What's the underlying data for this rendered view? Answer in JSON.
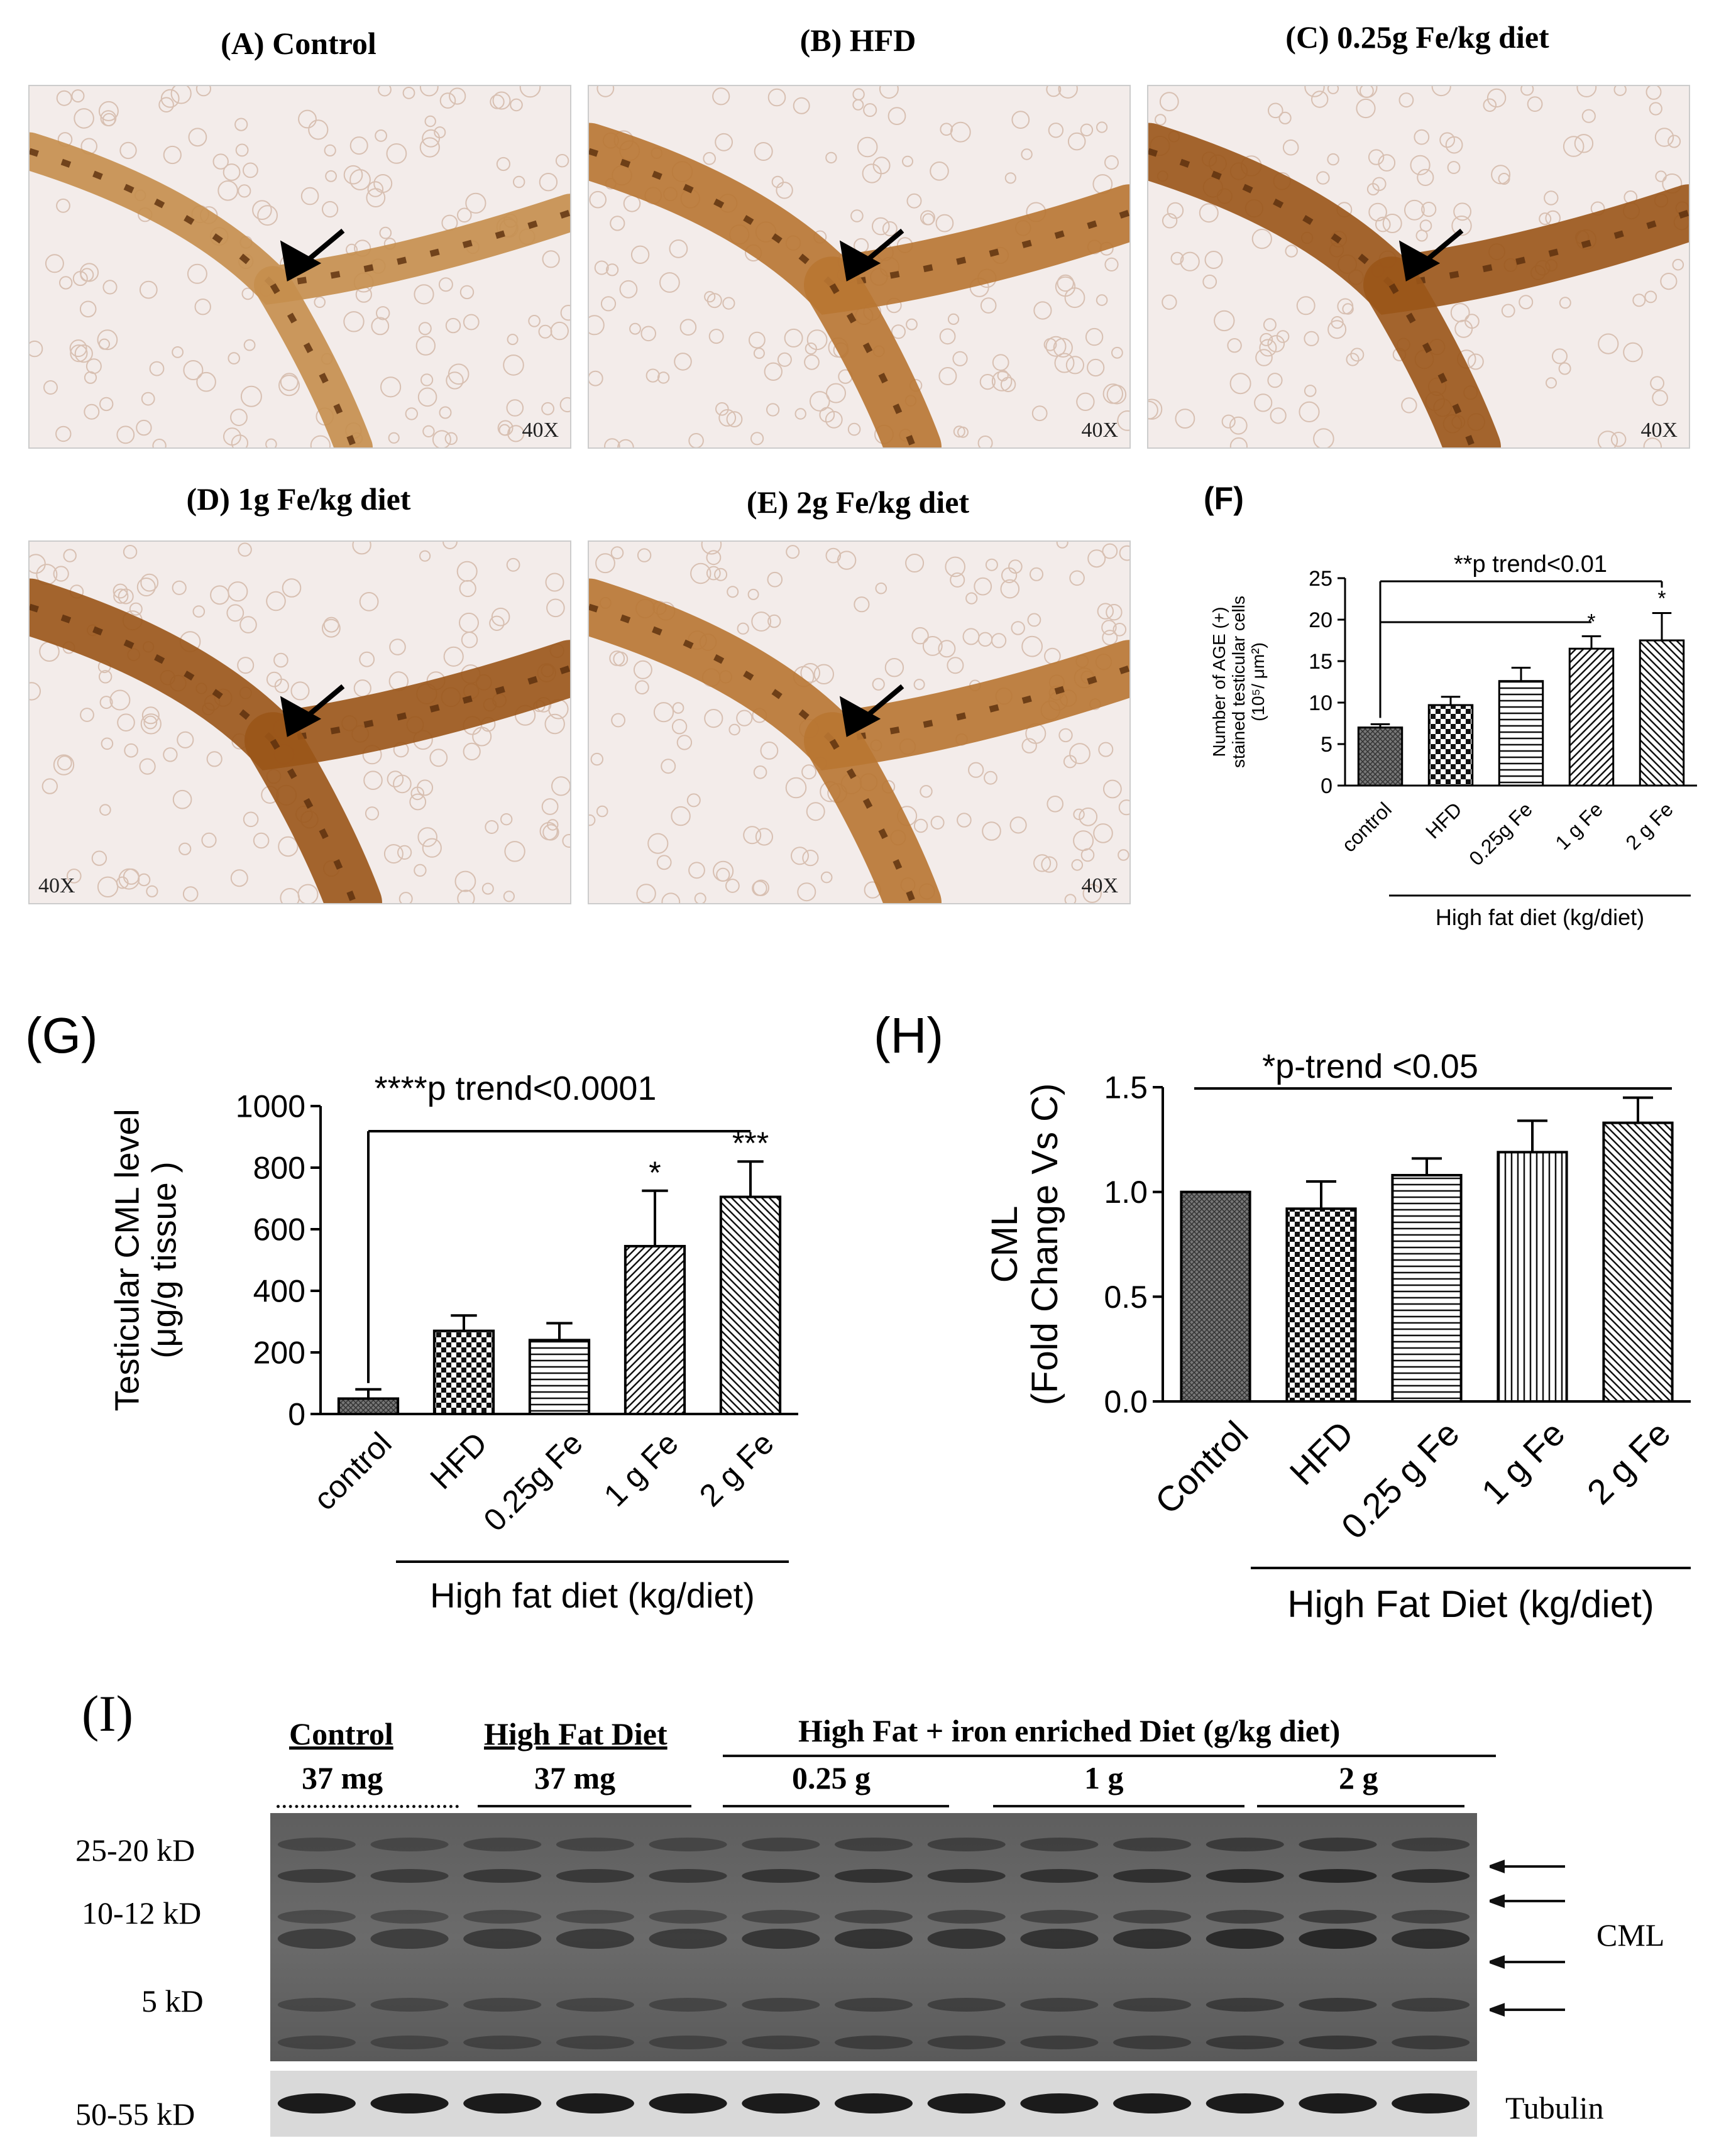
{
  "micro_panels": [
    {
      "id": "A",
      "title": "(A) Control",
      "mag": "40X",
      "mag_side": "right",
      "tone": "light"
    },
    {
      "id": "B",
      "title": "(B) HFD",
      "mag": "40X",
      "mag_side": "right",
      "tone": "medium"
    },
    {
      "id": "C",
      "title": "(C) 0.25g Fe/kg diet",
      "mag": "40X",
      "mag_side": "right",
      "tone": "dark"
    },
    {
      "id": "D",
      "title": "(D) 1g Fe/kg diet",
      "mag": "40X",
      "mag_side": "left",
      "tone": "dark"
    },
    {
      "id": "E",
      "title": "(E) 2g Fe/kg diet",
      "mag": "40X",
      "mag_side": "right",
      "tone": "medium"
    }
  ],
  "chart_data": [
    {
      "id": "F",
      "type": "bar",
      "panel_label": "(F)",
      "categories": [
        "control",
        "HFD",
        "0.25g Fe",
        "1 g Fe",
        "2 g Fe"
      ],
      "values": [
        7,
        9.7,
        12.6,
        16.5,
        17.5
      ],
      "errors": [
        0.4,
        1.0,
        1.6,
        1.5,
        3.3
      ],
      "significance": [
        "",
        "",
        "",
        "*",
        "*"
      ],
      "patterns": [
        "cross",
        "check",
        "hlines",
        "diag",
        "diag2"
      ],
      "ylabel_line1": "Number of AGE (+)",
      "ylabel_line2": "stained testicular cells",
      "ylabel_line3": "(10⁵/ μm²)",
      "yticks": [
        0,
        5,
        10,
        15,
        20,
        25
      ],
      "ylim": [
        0,
        25
      ],
      "annotation": "**p trend<0.01",
      "group_label": "High fat diet (kg/diet)"
    },
    {
      "id": "G",
      "type": "bar",
      "panel_label": "(G)",
      "categories": [
        "control",
        "HFD",
        "0.25g Fe",
        "1 g Fe",
        "2 g Fe"
      ],
      "values": [
        50,
        270,
        240,
        545,
        705
      ],
      "errors": [
        30,
        50,
        55,
        180,
        115
      ],
      "significance": [
        "",
        "",
        "",
        "*",
        "***"
      ],
      "patterns": [
        "cross",
        "check",
        "hlines",
        "diag",
        "diag2"
      ],
      "ylabel_line1": "Testicular CML level",
      "ylabel_line2": "(μg/g tissue )",
      "yticks": [
        0,
        200,
        400,
        600,
        800,
        1000
      ],
      "ylim": [
        0,
        1000
      ],
      "annotation": "****p trend<0.0001",
      "group_label": "High fat diet (kg/diet)"
    },
    {
      "id": "H",
      "type": "bar",
      "panel_label": "(H)",
      "categories": [
        "Control",
        "HFD",
        "0.25 g Fe",
        "1 g Fe",
        "2 g Fe"
      ],
      "values": [
        1.0,
        0.92,
        1.08,
        1.19,
        1.33
      ],
      "errors": [
        0,
        0.13,
        0.08,
        0.15,
        0.12
      ],
      "significance": [
        "",
        "",
        "",
        "",
        ""
      ],
      "patterns": [
        "cross",
        "check",
        "hlines",
        "vlines",
        "diag2"
      ],
      "ylabel_line1": "CML",
      "ylabel_line2": "(Fold Change Vs C)",
      "yticks": [
        0.0,
        0.5,
        1.0,
        1.5
      ],
      "yticklabels": [
        "0.0",
        "0.5",
        "1.0",
        "1.5"
      ],
      "ylim": [
        0,
        1.5
      ],
      "annotation": "*p-trend <0.05",
      "group_label": "High Fat Diet (kg/diet)"
    }
  ],
  "western": {
    "panel_label": "(I)",
    "groups": [
      {
        "name": "Control",
        "dose": "37 mg"
      },
      {
        "name": "High Fat Diet",
        "dose": "37 mg"
      },
      {
        "name": "High Fat + iron enriched Diet (g/kg diet)",
        "dose": ""
      }
    ],
    "doses": [
      "0.25 g",
      "1 g",
      "2 g"
    ],
    "mw_labels": [
      "25-20 kD",
      "10-12 kD",
      "5 kD",
      "50-55 kD"
    ],
    "right_labels": {
      "cml": "CML",
      "tubulin": "Tubulin"
    }
  }
}
